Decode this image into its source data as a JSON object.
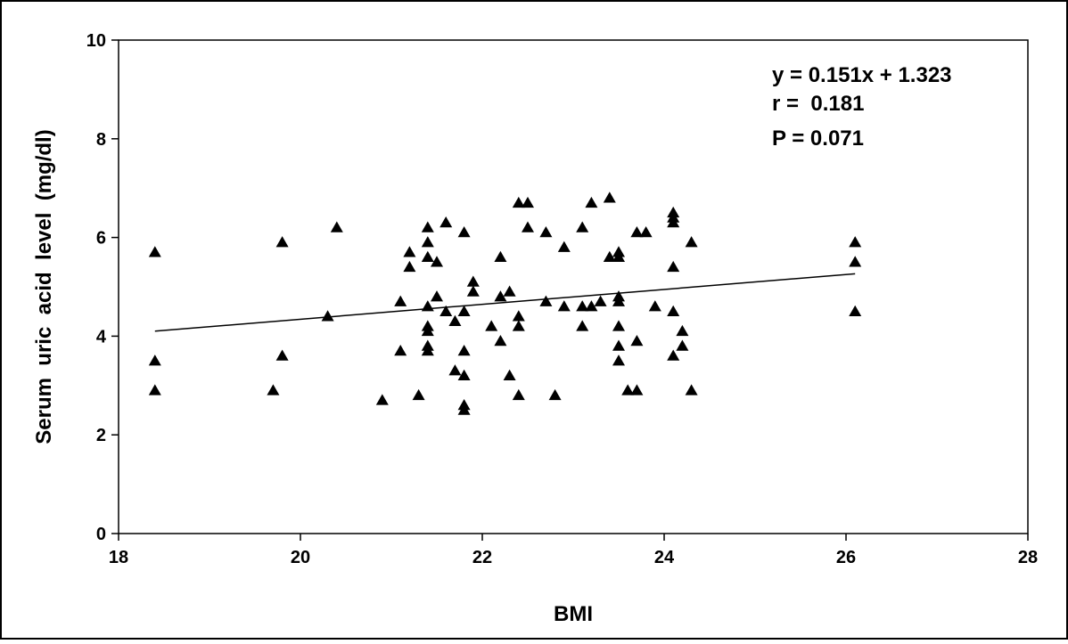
{
  "chart_data": {
    "type": "scatter",
    "xlabel": "BMI",
    "ylabel": "Serum  uric  acid  level  (mg/dl)",
    "xlim": [
      18,
      28
    ],
    "ylim": [
      0,
      10
    ],
    "x_ticks": [
      18,
      20,
      22,
      24,
      26,
      28
    ],
    "y_ticks": [
      0,
      2,
      4,
      6,
      8,
      10
    ],
    "x_tick_labels": [
      "18",
      "20",
      "22",
      "24",
      "26",
      "28"
    ],
    "y_tick_labels": [
      "0",
      "2",
      "4",
      "6",
      "8",
      "10"
    ],
    "grid": false,
    "marker": "filled-triangle",
    "annotations": [
      "y = 0.151x + 1.323",
      "r =  0.181",
      "P = 0.071"
    ],
    "trendline": {
      "slope": 0.151,
      "intercept": 1.323,
      "x_range": [
        18.4,
        26.1
      ]
    },
    "points": [
      [
        18.4,
        5.7
      ],
      [
        18.4,
        3.5
      ],
      [
        18.4,
        2.9
      ],
      [
        19.7,
        2.9
      ],
      [
        19.8,
        5.9
      ],
      [
        19.8,
        3.6
      ],
      [
        20.3,
        4.4
      ],
      [
        20.4,
        6.2
      ],
      [
        20.9,
        2.7
      ],
      [
        21.1,
        4.7
      ],
      [
        21.1,
        3.7
      ],
      [
        21.2,
        5.7
      ],
      [
        21.2,
        5.4
      ],
      [
        21.3,
        2.8
      ],
      [
        21.4,
        6.2
      ],
      [
        21.4,
        5.9
      ],
      [
        21.4,
        5.6
      ],
      [
        21.4,
        4.6
      ],
      [
        21.4,
        4.2
      ],
      [
        21.4,
        4.1
      ],
      [
        21.4,
        3.8
      ],
      [
        21.4,
        3.7
      ],
      [
        21.5,
        5.5
      ],
      [
        21.5,
        4.8
      ],
      [
        21.6,
        6.3
      ],
      [
        21.6,
        4.5
      ],
      [
        21.7,
        4.3
      ],
      [
        21.7,
        3.3
      ],
      [
        21.8,
        6.1
      ],
      [
        21.8,
        4.5
      ],
      [
        21.8,
        3.7
      ],
      [
        21.8,
        3.2
      ],
      [
        21.8,
        2.6
      ],
      [
        21.8,
        2.5
      ],
      [
        21.9,
        5.1
      ],
      [
        21.9,
        4.9
      ],
      [
        22.1,
        4.2
      ],
      [
        22.2,
        5.6
      ],
      [
        22.2,
        4.8
      ],
      [
        22.2,
        3.9
      ],
      [
        22.3,
        4.9
      ],
      [
        22.3,
        3.2
      ],
      [
        22.4,
        6.7
      ],
      [
        22.4,
        4.4
      ],
      [
        22.4,
        4.2
      ],
      [
        22.4,
        2.8
      ],
      [
        22.5,
        6.7
      ],
      [
        22.5,
        6.2
      ],
      [
        22.7,
        6.1
      ],
      [
        22.7,
        4.7
      ],
      [
        22.8,
        2.8
      ],
      [
        22.9,
        5.8
      ],
      [
        22.9,
        4.6
      ],
      [
        23.1,
        6.2
      ],
      [
        23.1,
        4.6
      ],
      [
        23.1,
        4.2
      ],
      [
        23.2,
        6.7
      ],
      [
        23.2,
        4.6
      ],
      [
        23.3,
        4.7
      ],
      [
        23.4,
        6.8
      ],
      [
        23.4,
        5.6
      ],
      [
        23.5,
        5.7
      ],
      [
        23.5,
        5.6
      ],
      [
        23.5,
        4.8
      ],
      [
        23.5,
        4.7
      ],
      [
        23.5,
        4.2
      ],
      [
        23.5,
        3.8
      ],
      [
        23.5,
        3.5
      ],
      [
        23.6,
        2.9
      ],
      [
        23.7,
        6.1
      ],
      [
        23.7,
        3.9
      ],
      [
        23.7,
        2.9
      ],
      [
        23.8,
        6.1
      ],
      [
        23.9,
        4.6
      ],
      [
        24.1,
        6.5
      ],
      [
        24.1,
        6.4
      ],
      [
        24.1,
        6.3
      ],
      [
        24.1,
        5.4
      ],
      [
        24.1,
        4.5
      ],
      [
        24.1,
        3.6
      ],
      [
        24.2,
        4.1
      ],
      [
        24.2,
        3.8
      ],
      [
        24.3,
        5.9
      ],
      [
        24.3,
        2.9
      ],
      [
        26.1,
        5.9
      ],
      [
        26.1,
        5.5
      ],
      [
        26.1,
        4.5
      ]
    ]
  }
}
